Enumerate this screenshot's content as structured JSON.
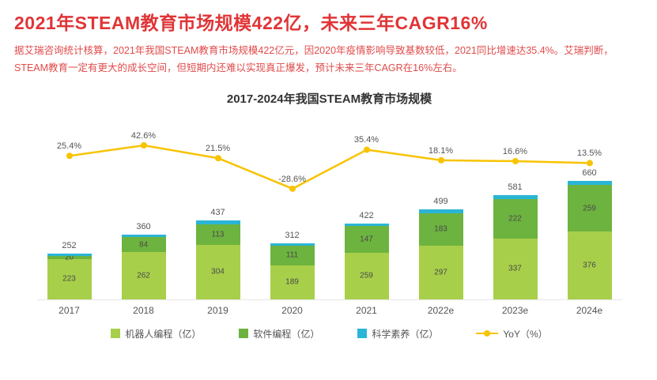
{
  "header": {
    "title": "2021年STEAM教育市场规模422亿，未来三年CAGR16%",
    "description": "据艾瑞咨询统计核算，2021年我国STEAM教育市场规模422亿元，因2020年疫情影响导致基数较低，2021同比增速达35.4%。艾瑞判断，STEAM教育一定有更大的成长空间，但短期内还难以实现真正爆发，预计未来三年CAGR在16%左右。",
    "accent_color": "#e03537"
  },
  "chart_data": {
    "type": "bar",
    "title": "2017-2024年我国STEAM教育市场规模",
    "categories": [
      "2017",
      "2018",
      "2019",
      "2020",
      "2021",
      "2022e",
      "2023e",
      "2024e"
    ],
    "series": [
      {
        "name": "机器人编程（亿）",
        "color": "#a8cf4a",
        "values": [
          223,
          262,
          304,
          189,
          259,
          297,
          337,
          376
        ]
      },
      {
        "name": "软件编程（亿）",
        "color": "#6db33f",
        "values": [
          20,
          84,
          113,
          111,
          147,
          183,
          222,
          259
        ]
      },
      {
        "name": "科学素养（亿）",
        "color": "#2ab5d6"
      }
    ],
    "totals": [
      252,
      360,
      437,
      312,
      422,
      499,
      581,
      660
    ],
    "line": {
      "name": "YoY（%）",
      "color": "#f8c300",
      "values": [
        25.4,
        42.6,
        21.5,
        -28.6,
        35.4,
        18.1,
        16.6,
        13.5
      ],
      "unit": "%"
    },
    "ylim": [
      0,
      700
    ],
    "grid": false,
    "legend_position": "bottom",
    "stacked": true
  }
}
